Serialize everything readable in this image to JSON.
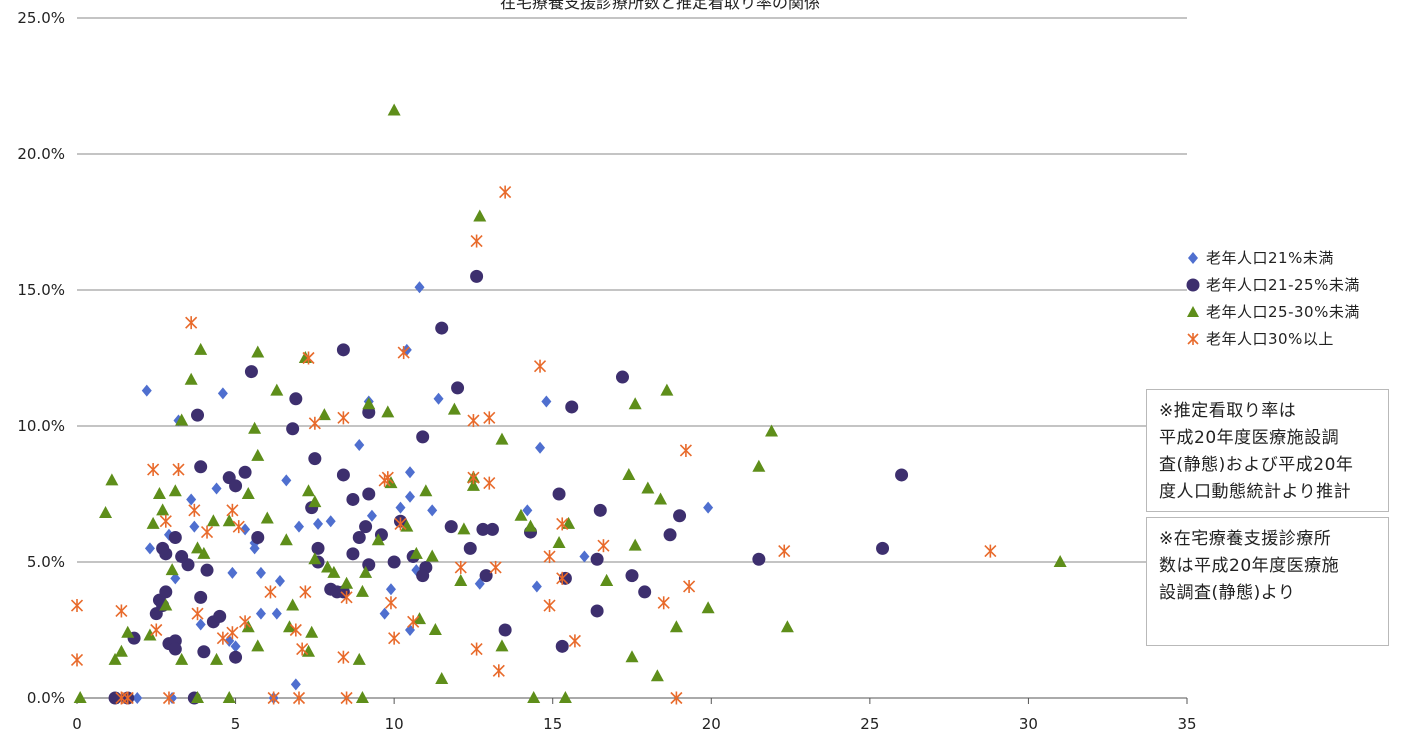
{
  "chart_data": {
    "type": "scatter",
    "title": "在宅療養支援診療所数と推定看取り率の関係",
    "xlim": [
      0,
      35
    ],
    "ylim": [
      0,
      0.25
    ],
    "x_ticks": [
      "0",
      "5",
      "10",
      "15",
      "20",
      "25",
      "30",
      "35"
    ],
    "y_ticks": [
      "0.0%",
      "5.0%",
      "10.0%",
      "15.0%",
      "20.0%",
      "25.0%"
    ],
    "grid": "horizontal",
    "legend_position": "right",
    "series": [
      {
        "name": "老年人口21%未満",
        "marker": "diamond",
        "color": "#4f6fcf",
        "points": [
          [
            2.2,
            0.113
          ],
          [
            4.6,
            0.112
          ],
          [
            3.2,
            0.102
          ],
          [
            4.4,
            0.077
          ],
          [
            3.6,
            0.073
          ],
          [
            3.7,
            0.063
          ],
          [
            2.9,
            0.06
          ],
          [
            2.3,
            0.055
          ],
          [
            5.3,
            0.062
          ],
          [
            5.6,
            0.057
          ],
          [
            5.6,
            0.055
          ],
          [
            4.9,
            0.046
          ],
          [
            5.8,
            0.046
          ],
          [
            3.1,
            0.044
          ],
          [
            6.6,
            0.08
          ],
          [
            6.4,
            0.043
          ],
          [
            6.3,
            0.031
          ],
          [
            5.8,
            0.031
          ],
          [
            7.0,
            0.063
          ],
          [
            7.6,
            0.064
          ],
          [
            8.0,
            0.065
          ],
          [
            8.9,
            0.093
          ],
          [
            9.2,
            0.109
          ],
          [
            9.3,
            0.067
          ],
          [
            9.9,
            0.04
          ],
          [
            10.2,
            0.07
          ],
          [
            10.5,
            0.083
          ],
          [
            10.5,
            0.074
          ],
          [
            10.7,
            0.047
          ],
          [
            11.4,
            0.11
          ],
          [
            11.2,
            0.069
          ],
          [
            12.7,
            0.042
          ],
          [
            10.8,
            0.151
          ],
          [
            10.4,
            0.128
          ],
          [
            9.7,
            0.031
          ],
          [
            10.5,
            0.025
          ],
          [
            14.2,
            0.069
          ],
          [
            14.5,
            0.041
          ],
          [
            14.6,
            0.092
          ],
          [
            14.8,
            0.109
          ],
          [
            16.0,
            0.052
          ],
          [
            19.9,
            0.07
          ],
          [
            5.0,
            0.019
          ],
          [
            3.9,
            0.027
          ],
          [
            4.8,
            0.021
          ],
          [
            6.9,
            0.005
          ],
          [
            1.3,
            0.0
          ],
          [
            1.9,
            0.0
          ],
          [
            3.0,
            0.0
          ],
          [
            6.2,
            0.0
          ]
        ]
      },
      {
        "name": "老年人口21-25%未満",
        "marker": "circle",
        "color": "#3d2f6e",
        "points": [
          [
            5.5,
            0.12
          ],
          [
            3.8,
            0.104
          ],
          [
            3.9,
            0.085
          ],
          [
            4.8,
            0.081
          ],
          [
            5.0,
            0.078
          ],
          [
            5.3,
            0.083
          ],
          [
            5.7,
            0.059
          ],
          [
            6.9,
            0.11
          ],
          [
            6.8,
            0.099
          ],
          [
            8.4,
            0.128
          ],
          [
            9.2,
            0.105
          ],
          [
            9.2,
            0.075
          ],
          [
            9.1,
            0.063
          ],
          [
            11.5,
            0.136
          ],
          [
            12.0,
            0.114
          ],
          [
            10.9,
            0.096
          ],
          [
            12.6,
            0.155
          ],
          [
            12.8,
            0.062
          ],
          [
            12.9,
            0.045
          ],
          [
            13.5,
            0.025
          ],
          [
            15.2,
            0.075
          ],
          [
            15.6,
            0.107
          ],
          [
            17.2,
            0.118
          ],
          [
            16.5,
            0.069
          ],
          [
            17.5,
            0.045
          ],
          [
            17.9,
            0.039
          ],
          [
            16.4,
            0.032
          ],
          [
            18.7,
            0.06
          ],
          [
            19.0,
            0.067
          ],
          [
            21.5,
            0.051
          ],
          [
            25.4,
            0.055
          ],
          [
            26.0,
            0.082
          ],
          [
            7.5,
            0.088
          ],
          [
            7.4,
            0.07
          ],
          [
            7.6,
            0.055
          ],
          [
            7.6,
            0.05
          ],
          [
            8.0,
            0.04
          ],
          [
            8.2,
            0.039
          ],
          [
            8.4,
            0.082
          ],
          [
            8.4,
            0.039
          ],
          [
            8.7,
            0.073
          ],
          [
            8.7,
            0.053
          ],
          [
            8.9,
            0.059
          ],
          [
            9.6,
            0.06
          ],
          [
            9.2,
            0.049
          ],
          [
            10.2,
            0.065
          ],
          [
            10.0,
            0.05
          ],
          [
            10.6,
            0.052
          ],
          [
            11.0,
            0.048
          ],
          [
            10.9,
            0.045
          ],
          [
            11.8,
            0.063
          ],
          [
            12.4,
            0.055
          ],
          [
            3.5,
            0.049
          ],
          [
            3.3,
            0.052
          ],
          [
            3.1,
            0.059
          ],
          [
            2.8,
            0.053
          ],
          [
            2.7,
            0.055
          ],
          [
            2.5,
            0.031
          ],
          [
            2.6,
            0.036
          ],
          [
            2.7,
            0.034
          ],
          [
            2.8,
            0.039
          ],
          [
            2.9,
            0.02
          ],
          [
            3.1,
            0.021
          ],
          [
            3.1,
            0.018
          ],
          [
            3.9,
            0.037
          ],
          [
            4.1,
            0.047
          ],
          [
            4.3,
            0.028
          ],
          [
            4.5,
            0.03
          ],
          [
            5.0,
            0.015
          ],
          [
            4.0,
            0.017
          ],
          [
            1.8,
            0.022
          ],
          [
            1.2,
            0.0
          ],
          [
            1.6,
            0.0
          ],
          [
            3.7,
            0.0
          ],
          [
            14.3,
            0.061
          ],
          [
            15.3,
            0.019
          ],
          [
            15.4,
            0.044
          ],
          [
            16.4,
            0.051
          ],
          [
            13.1,
            0.062
          ]
        ]
      },
      {
        "name": "老年人口25-30%未満",
        "marker": "triangle",
        "color": "#5e8e1a",
        "points": [
          [
            10.0,
            0.216
          ],
          [
            12.7,
            0.177
          ],
          [
            3.9,
            0.128
          ],
          [
            5.7,
            0.127
          ],
          [
            7.2,
            0.125
          ],
          [
            3.6,
            0.117
          ],
          [
            6.3,
            0.113
          ],
          [
            3.3,
            0.102
          ],
          [
            5.6,
            0.099
          ],
          [
            5.7,
            0.089
          ],
          [
            7.5,
            0.072
          ],
          [
            7.8,
            0.104
          ],
          [
            9.2,
            0.108
          ],
          [
            9.8,
            0.105
          ],
          [
            11.9,
            0.106
          ],
          [
            13.4,
            0.095
          ],
          [
            12.5,
            0.081
          ],
          [
            17.6,
            0.108
          ],
          [
            18.6,
            0.113
          ],
          [
            21.9,
            0.098
          ],
          [
            21.5,
            0.085
          ],
          [
            17.4,
            0.082
          ],
          [
            18.0,
            0.077
          ],
          [
            18.4,
            0.073
          ],
          [
            15.2,
            0.057
          ],
          [
            15.5,
            0.064
          ],
          [
            14.3,
            0.063
          ],
          [
            17.6,
            0.056
          ],
          [
            16.7,
            0.043
          ],
          [
            16.7,
            0.043
          ],
          [
            19.9,
            0.033
          ],
          [
            22.4,
            0.026
          ],
          [
            31.0,
            0.05
          ],
          [
            18.9,
            0.026
          ],
          [
            17.5,
            0.015
          ],
          [
            18.3,
            0.008
          ],
          [
            14.4,
            0.0
          ],
          [
            15.4,
            0.0
          ],
          [
            1.1,
            0.08
          ],
          [
            0.9,
            0.068
          ],
          [
            2.6,
            0.075
          ],
          [
            2.7,
            0.069
          ],
          [
            3.1,
            0.076
          ],
          [
            2.4,
            0.064
          ],
          [
            2.3,
            0.023
          ],
          [
            2.8,
            0.034
          ],
          [
            1.6,
            0.024
          ],
          [
            1.4,
            0.017
          ],
          [
            1.2,
            0.014
          ],
          [
            3.3,
            0.014
          ],
          [
            3.0,
            0.047
          ],
          [
            3.8,
            0.055
          ],
          [
            4.0,
            0.053
          ],
          [
            4.3,
            0.065
          ],
          [
            4.8,
            0.065
          ],
          [
            5.4,
            0.075
          ],
          [
            6.0,
            0.066
          ],
          [
            6.6,
            0.058
          ],
          [
            6.8,
            0.034
          ],
          [
            7.3,
            0.076
          ],
          [
            7.5,
            0.051
          ],
          [
            7.9,
            0.048
          ],
          [
            8.5,
            0.042
          ],
          [
            9.1,
            0.046
          ],
          [
            9.5,
            0.058
          ],
          [
            9.9,
            0.079
          ],
          [
            10.4,
            0.063
          ],
          [
            10.7,
            0.053
          ],
          [
            11.0,
            0.076
          ],
          [
            11.2,
            0.052
          ],
          [
            11.3,
            0.025
          ],
          [
            12.2,
            0.062
          ],
          [
            12.5,
            0.078
          ],
          [
            13.4,
            0.019
          ],
          [
            14.0,
            0.067
          ],
          [
            12.1,
            0.043
          ],
          [
            10.8,
            0.029
          ],
          [
            9.0,
            0.039
          ],
          [
            8.1,
            0.046
          ],
          [
            7.4,
            0.024
          ],
          [
            8.9,
            0.014
          ],
          [
            9.0,
            0.0
          ],
          [
            11.5,
            0.007
          ],
          [
            4.4,
            0.014
          ],
          [
            4.8,
            0.0
          ],
          [
            3.8,
            0.0
          ],
          [
            0.1,
            0.0
          ],
          [
            5.4,
            0.026
          ],
          [
            6.7,
            0.026
          ],
          [
            7.3,
            0.017
          ],
          [
            5.7,
            0.019
          ]
        ]
      },
      {
        "name": "老年人口30%以上",
        "marker": "asterisk",
        "color": "#e86a2b",
        "points": [
          [
            13.5,
            0.186
          ],
          [
            12.6,
            0.168
          ],
          [
            3.6,
            0.138
          ],
          [
            10.3,
            0.127
          ],
          [
            7.3,
            0.125
          ],
          [
            14.6,
            0.122
          ],
          [
            13.0,
            0.103
          ],
          [
            12.5,
            0.102
          ],
          [
            7.5,
            0.101
          ],
          [
            8.4,
            0.103
          ],
          [
            19.2,
            0.091
          ],
          [
            2.4,
            0.084
          ],
          [
            3.2,
            0.084
          ],
          [
            2.8,
            0.065
          ],
          [
            4.1,
            0.061
          ],
          [
            3.7,
            0.069
          ],
          [
            4.9,
            0.069
          ],
          [
            5.1,
            0.063
          ],
          [
            9.8,
            0.081
          ],
          [
            9.7,
            0.08
          ],
          [
            13.0,
            0.079
          ],
          [
            12.5,
            0.081
          ],
          [
            10.2,
            0.064
          ],
          [
            15.3,
            0.064
          ],
          [
            16.6,
            0.056
          ],
          [
            22.3,
            0.054
          ],
          [
            28.8,
            0.054
          ],
          [
            14.9,
            0.052
          ],
          [
            15.3,
            0.044
          ],
          [
            19.3,
            0.041
          ],
          [
            18.5,
            0.035
          ],
          [
            14.9,
            0.034
          ],
          [
            15.7,
            0.021
          ],
          [
            13.3,
            0.01
          ],
          [
            12.6,
            0.018
          ],
          [
            10.6,
            0.028
          ],
          [
            10.0,
            0.022
          ],
          [
            9.9,
            0.035
          ],
          [
            8.5,
            0.037
          ],
          [
            8.4,
            0.015
          ],
          [
            7.1,
            0.018
          ],
          [
            7.2,
            0.039
          ],
          [
            6.9,
            0.025
          ],
          [
            6.1,
            0.039
          ],
          [
            5.3,
            0.028
          ],
          [
            4.9,
            0.024
          ],
          [
            4.6,
            0.022
          ],
          [
            3.8,
            0.031
          ],
          [
            2.5,
            0.025
          ],
          [
            1.4,
            0.032
          ],
          [
            0.0,
            0.034
          ],
          [
            0.0,
            0.014
          ],
          [
            1.4,
            0.0
          ],
          [
            1.6,
            0.0
          ],
          [
            2.9,
            0.0
          ],
          [
            6.2,
            0.0
          ],
          [
            7.0,
            0.0
          ],
          [
            8.5,
            0.0
          ],
          [
            18.9,
            0.0
          ],
          [
            13.2,
            0.048
          ],
          [
            12.1,
            0.048
          ]
        ]
      }
    ]
  },
  "notes": [
    "※推定看取り率は\n平成20年度医療施設調\n査(静態)および平成20年\n度人口動態統計より推計",
    "※在宅療養支援診療所\n数は平成20年度医療施\n設調査(静態)より"
  ]
}
